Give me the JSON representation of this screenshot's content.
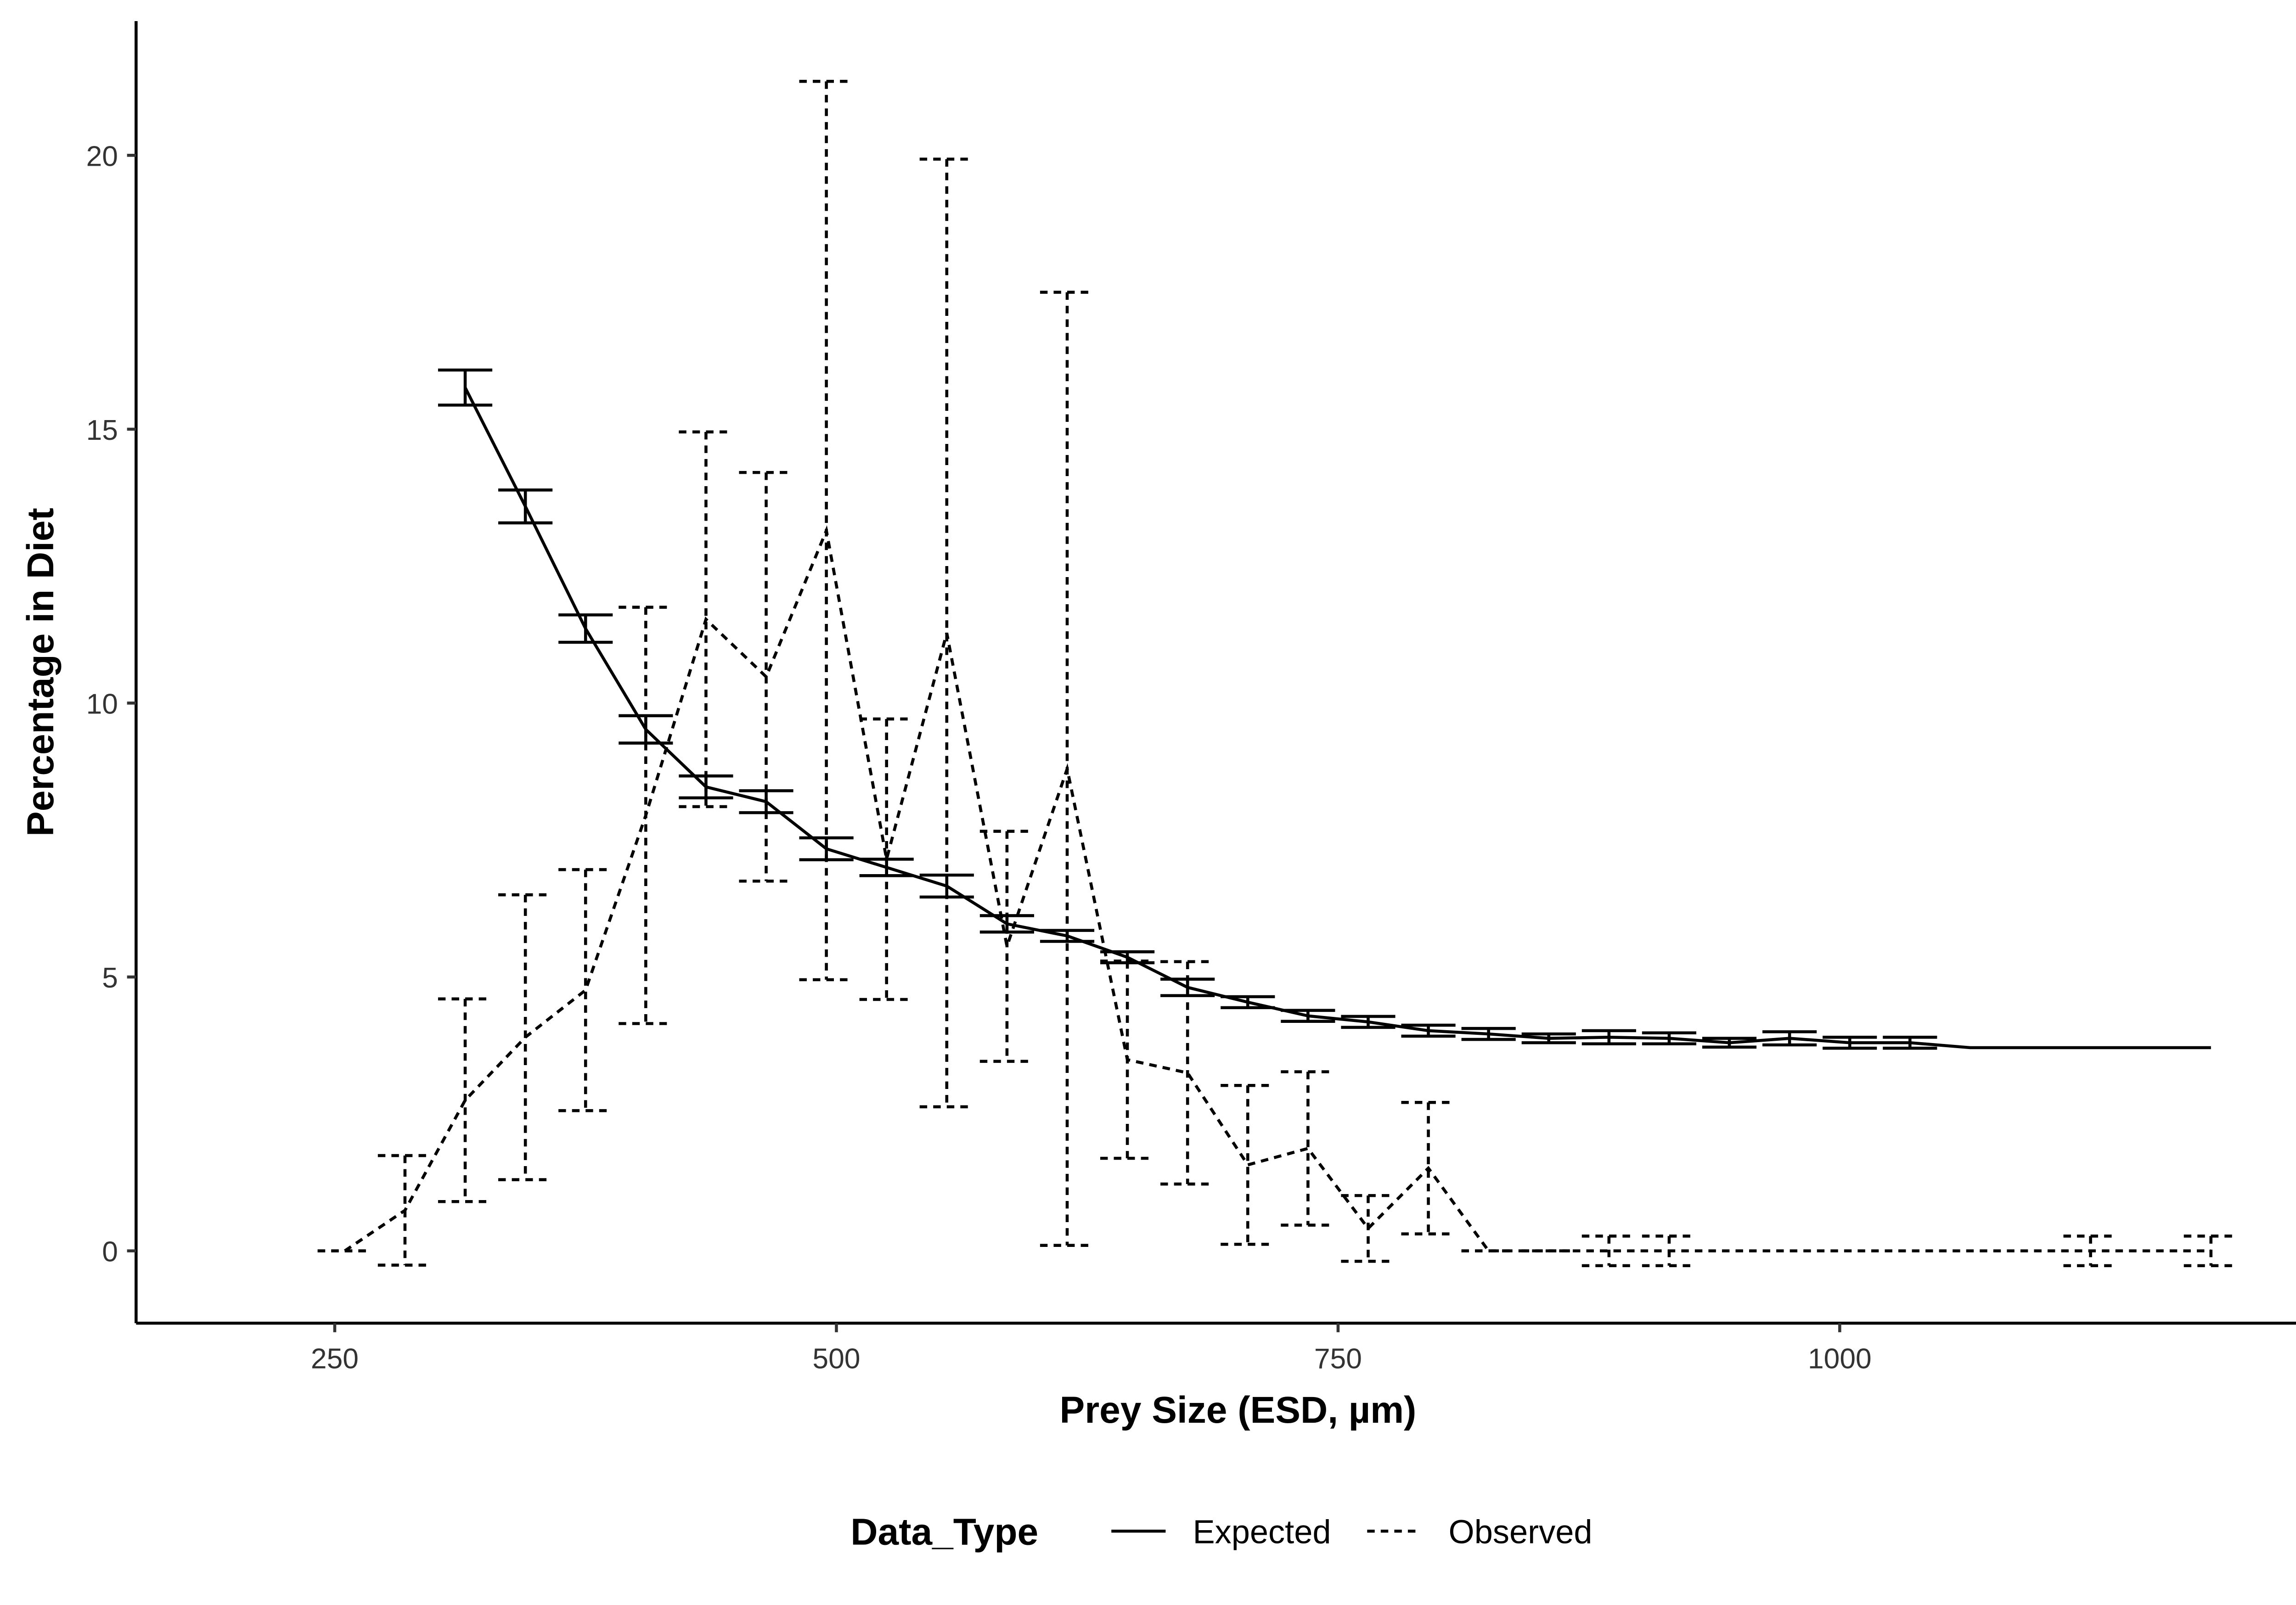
{
  "chart_data": {
    "type": "errorline",
    "xlabel": "Prey Size (ESD, µm)",
    "ylabel": "Percentage in Diet",
    "legend_title": "Data_Type",
    "legend": "bottom",
    "xlim": [
      151,
      1250
    ],
    "ylim": [
      -1.32,
      22.45
    ],
    "xticks": [
      250,
      500,
      750,
      1000,
      1250
    ],
    "yticks": [
      0,
      5,
      10,
      15,
      20
    ],
    "series": [
      {
        "name": "Expected",
        "color": "#000000",
        "linestyle": "solid",
        "x": [
          315,
          345,
          375,
          405,
          435,
          465,
          495,
          525,
          555,
          585,
          615,
          645,
          675,
          705,
          735,
          765,
          795,
          825,
          855,
          885,
          915,
          945,
          975,
          1005,
          1035,
          1065,
          1095,
          1125,
          1155,
          1185
        ],
        "values": [
          15.76,
          13.59,
          11.36,
          9.52,
          8.47,
          8.2,
          7.34,
          7.0,
          6.66,
          5.97,
          5.75,
          5.36,
          4.81,
          4.54,
          4.29,
          4.18,
          4.02,
          3.96,
          3.88,
          3.9,
          3.88,
          3.8,
          3.88,
          3.8,
          3.8,
          3.71,
          3.71,
          3.71,
          3.71,
          3.71
        ],
        "errors": [
          0.32,
          0.3,
          0.25,
          0.25,
          0.2,
          0.2,
          0.2,
          0.15,
          0.2,
          0.15,
          0.1,
          0.1,
          0.15,
          0.1,
          0.1,
          0.1,
          0.1,
          0.1,
          0.08,
          0.12,
          0.1,
          0.08,
          0.12,
          0.1,
          0.1,
          null,
          null,
          null,
          null,
          null
        ]
      },
      {
        "name": "Observed",
        "color": "#000000",
        "linestyle": "dashed",
        "x": [
          255,
          285,
          315,
          345,
          375,
          405,
          435,
          465,
          495,
          525,
          555,
          585,
          615,
          645,
          675,
          705,
          735,
          765,
          795,
          825,
          855,
          885,
          915,
          945,
          975,
          1005,
          1035,
          1065,
          1095,
          1125,
          1155,
          1185
        ],
        "values": [
          0,
          0.74,
          2.75,
          3.9,
          4.76,
          7.95,
          11.53,
          10.48,
          13.15,
          7.15,
          11.28,
          5.56,
          8.8,
          3.49,
          3.25,
          1.57,
          1.87,
          0.41,
          1.51,
          0,
          0,
          0,
          0,
          0,
          0,
          0,
          0,
          0,
          0,
          0,
          0,
          0
        ],
        "errors": [
          0,
          1.0,
          1.85,
          2.6,
          2.2,
          3.8,
          3.42,
          3.73,
          8.2,
          2.56,
          8.65,
          2.1,
          8.7,
          1.8,
          2.03,
          1.45,
          1.4,
          0.6,
          1.2,
          0,
          0,
          0.27,
          0.27,
          null,
          null,
          null,
          null,
          null,
          null,
          0.27,
          null,
          0.27
        ]
      }
    ]
  }
}
